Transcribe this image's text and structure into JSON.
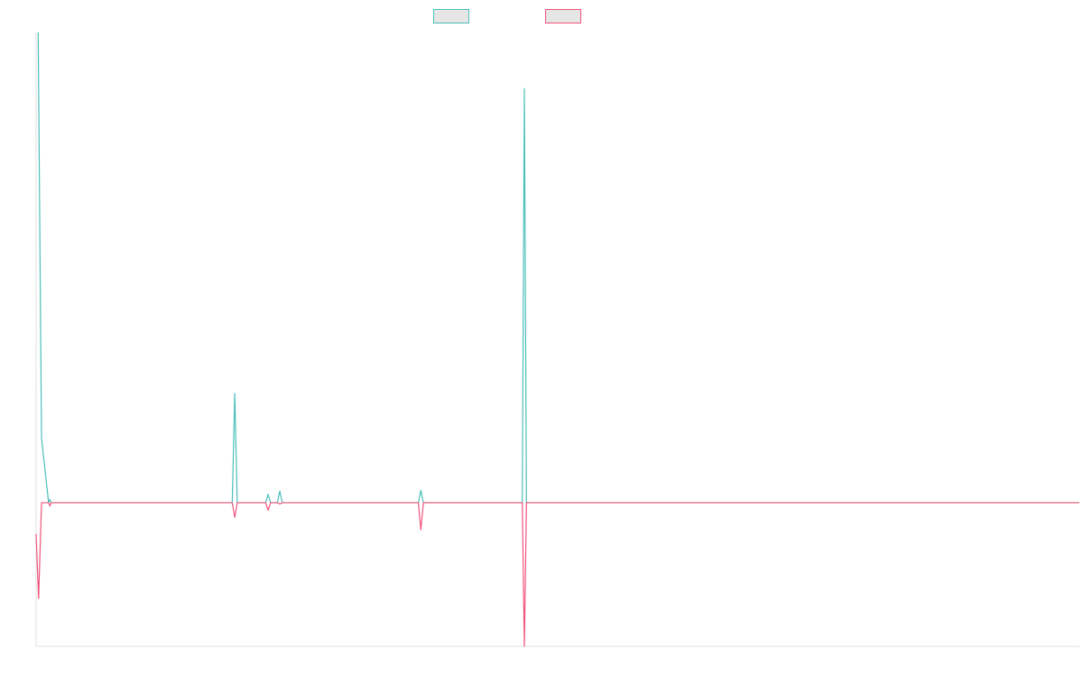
{
  "colors": {
    "series_a": "#4bbfb9",
    "series_b": "#f0547a",
    "legend_fill": "#e6e6e6",
    "axis": "#e0e0e0"
  },
  "chart_data": {
    "type": "line",
    "title": "",
    "xlabel": "",
    "ylabel": "",
    "legend_position": "top-center",
    "grid": false,
    "x": [
      0,
      1,
      2,
      3,
      4,
      5,
      6,
      7,
      8,
      9,
      10,
      11,
      12,
      13,
      14,
      15,
      16,
      17,
      18,
      19,
      20,
      21,
      22,
      23,
      24,
      25
    ],
    "ylim": [
      -0.345,
      1.13
    ],
    "series": [
      {
        "name": "",
        "values": [
          1.13,
          0.155,
          0.0,
          0.0,
          0.0,
          0.0,
          0.0,
          0.0,
          0.0,
          0.0,
          0.0,
          0.0,
          0.0,
          0.0,
          0.0,
          0.0,
          0.0,
          0.0,
          0.0,
          0.0,
          0.0,
          0.0,
          0.0,
          0.0,
          0.0,
          0.0
        ],
        "spikes": [
          [
            0.05,
            1.13
          ],
          [
            0.13,
            0.155
          ],
          [
            0.3,
            0.0
          ],
          [
            0.33,
            0.008
          ],
          [
            0.36,
            0.0
          ],
          [
            4.7,
            0.0
          ],
          [
            4.76,
            0.263
          ],
          [
            4.82,
            0.0
          ],
          [
            5.5,
            0.0
          ],
          [
            5.56,
            0.02
          ],
          [
            5.62,
            0.0
          ],
          [
            5.78,
            0.0
          ],
          [
            5.84,
            0.028
          ],
          [
            5.9,
            0.0
          ],
          [
            9.16,
            0.0
          ],
          [
            9.22,
            0.03
          ],
          [
            9.28,
            0.0
          ],
          [
            11.65,
            0.0
          ],
          [
            11.7,
            0.995
          ],
          [
            11.75,
            0.0
          ]
        ]
      },
      {
        "name": "",
        "values": [
          -0.075,
          -0.23,
          0.0,
          0.0,
          0.0,
          0.0,
          0.0,
          0.0,
          0.0,
          0.0,
          0.0,
          0.0,
          0.0,
          0.0,
          0.0,
          0.0,
          0.0,
          0.0,
          0.0,
          0.0,
          0.0,
          0.0,
          0.0,
          0.0,
          0.0,
          0.0
        ],
        "spikes": [
          [
            0.0,
            -0.075
          ],
          [
            0.06,
            -0.23
          ],
          [
            0.13,
            0.0
          ],
          [
            0.3,
            0.0
          ],
          [
            0.33,
            -0.008
          ],
          [
            0.36,
            0.0
          ],
          [
            4.7,
            0.0
          ],
          [
            4.76,
            -0.035
          ],
          [
            4.82,
            0.0
          ],
          [
            5.5,
            0.0
          ],
          [
            5.56,
            -0.018
          ],
          [
            5.62,
            0.0
          ],
          [
            5.78,
            0.0
          ],
          [
            5.84,
            -0.003
          ],
          [
            5.9,
            0.0
          ],
          [
            9.16,
            0.0
          ],
          [
            9.22,
            -0.065
          ],
          [
            9.28,
            0.0
          ],
          [
            11.65,
            0.0
          ],
          [
            11.7,
            -0.345
          ],
          [
            11.75,
            0.0
          ]
        ]
      }
    ]
  }
}
